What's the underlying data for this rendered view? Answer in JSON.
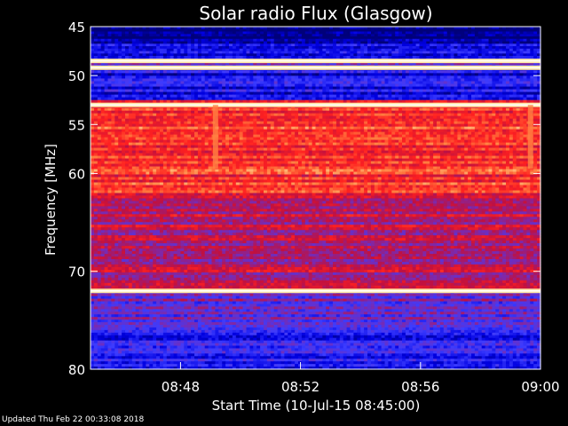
{
  "chart_data": {
    "type": "heatmap",
    "title": "Solar radio Flux (Glasgow)",
    "xlabel": "Start Time (10-Jul-15 08:45:00)",
    "ylabel": "Frequency [MHz]",
    "xlim_minutes": [
      "08:45",
      "09:00"
    ],
    "ylim": [
      45,
      80
    ],
    "y_scale": "linear-downward",
    "x_ticks": [
      "08:48",
      "08:52",
      "08:56",
      "09:00"
    ],
    "y_ticks": [
      45,
      50,
      55,
      60,
      70,
      80
    ],
    "colormap": [
      "#00007a",
      "#0000e0",
      "#3c3cff",
      "#7a2ab0",
      "#c01040",
      "#ff2020",
      "#ff8040",
      "#ffffc0"
    ],
    "bands": [
      {
        "from_mhz": 45.0,
        "to_mhz": 46.5,
        "level": 0.05
      },
      {
        "from_mhz": 46.5,
        "to_mhz": 48.0,
        "level": 0.15
      },
      {
        "from_mhz": 48.0,
        "to_mhz": 49.2,
        "level": 0.3
      },
      {
        "from_mhz": 49.2,
        "to_mhz": 52.5,
        "level": 0.18
      },
      {
        "from_mhz": 52.5,
        "to_mhz": 62.0,
        "level": 0.72
      },
      {
        "from_mhz": 62.0,
        "to_mhz": 72.0,
        "level": 0.55
      },
      {
        "from_mhz": 72.0,
        "to_mhz": 76.0,
        "level": 0.38
      },
      {
        "from_mhz": 76.0,
        "to_mhz": 80.0,
        "level": 0.22
      }
    ],
    "bright_lines_mhz": [
      48.5,
      49.2,
      53.0,
      72.0
    ],
    "spikes": [
      {
        "time": "08:49:10",
        "from_mhz": 53.0,
        "to_mhz": 59.5
      },
      {
        "time": "08:59:40",
        "from_mhz": 53.0,
        "to_mhz": 59.5
      }
    ]
  },
  "footer": {
    "updated": "Updated Thu Feb 22 00:33:08 2018"
  }
}
